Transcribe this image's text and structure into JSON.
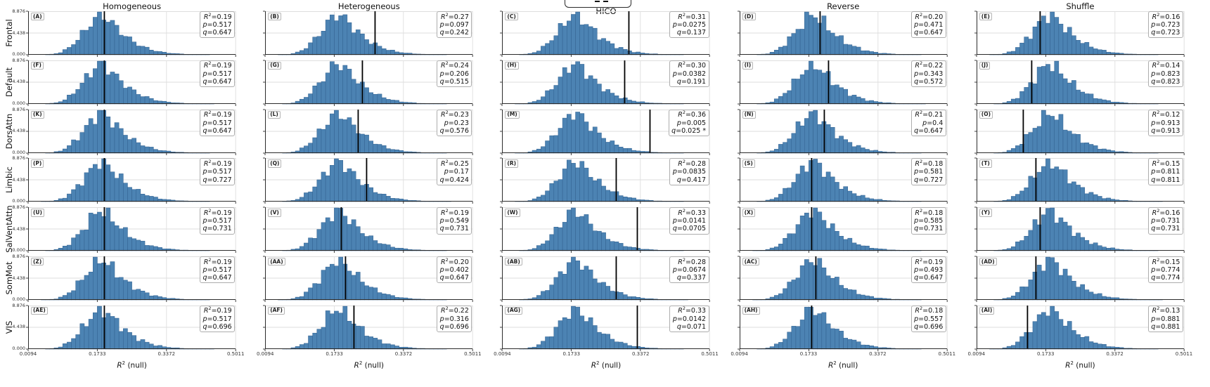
{
  "columns": [
    "Homogeneous",
    "Heterogeneous",
    "HICO",
    "Reverse",
    "Shuffle"
  ],
  "rows": [
    "Frontal",
    "Default",
    "DorsAttn",
    "Limbic",
    "SalVentAttn",
    "SomMot",
    "VIS"
  ],
  "axis": {
    "x_ticks": [
      "0.0094",
      "0.1733",
      "0.3372",
      "0.5011"
    ],
    "y_ticks": [
      "0.000",
      "4.438",
      "8.876"
    ],
    "xlabel_base": "R",
    "xlabel_sup": "2",
    "xlabel_rest": " (null)"
  },
  "stats_labels": {
    "r2_base": "R",
    "r2_sup": "2",
    "p": "p",
    "q": "q"
  },
  "legend": {
    "sample": "dashed-line",
    "cut_off": true
  },
  "colors": {
    "bar_fill": "#4c83b3",
    "bar_edge": "#31608f",
    "observed_line": "#000000",
    "grid": "#dedede",
    "spine": "#2b2b2b",
    "box_border": "#adadad"
  },
  "chart_data": {
    "type": "bar",
    "subtype": "null-distribution-histogram-grid",
    "xlim": [
      0.0094,
      0.5011
    ],
    "ylim": [
      0,
      8.876
    ],
    "x_ticks": [
      0.0094,
      0.1733,
      0.3372,
      0.5011
    ],
    "y_ticks": [
      0.0,
      4.438,
      8.876
    ],
    "grid": true,
    "null_hist_bins": 48,
    "null_hist_heights": [
      0,
      0,
      0,
      0.02,
      0.06,
      0.12,
      0.25,
      0.5,
      0.9,
      1.5,
      2.3,
      3.2,
      4.2,
      5.3,
      6.4,
      7.5,
      8.3,
      8.0,
      7.3,
      6.4,
      5.5,
      4.7,
      3.9,
      3.2,
      2.6,
      2.1,
      1.7,
      1.35,
      1.05,
      0.8,
      0.62,
      0.48,
      0.37,
      0.28,
      0.21,
      0.16,
      0.12,
      0.09,
      0.07,
      0.05,
      0.04,
      0.03,
      0.02,
      0.015,
      0.01,
      0,
      0,
      0
    ],
    "panels": [
      {
        "letter": "(A)",
        "row": "Frontal",
        "col": "Homogeneous",
        "r2": "0.19",
        "p": "0.517",
        "q": "0.647"
      },
      {
        "letter": "(B)",
        "row": "Frontal",
        "col": "Heterogeneous",
        "r2": "0.27",
        "p": "0.097",
        "q": "0.242"
      },
      {
        "letter": "(C)",
        "row": "Frontal",
        "col": "HICO",
        "r2": "0.31",
        "p": "0.0275",
        "q": "0.137"
      },
      {
        "letter": "(D)",
        "row": "Frontal",
        "col": "Reverse",
        "r2": "0.20",
        "p": "0.471",
        "q": "0.647"
      },
      {
        "letter": "(E)",
        "row": "Frontal",
        "col": "Shuffle",
        "r2": "0.16",
        "p": "0.723",
        "q": "0.723"
      },
      {
        "letter": "(F)",
        "row": "Default",
        "col": "Homogeneous",
        "r2": "0.19",
        "p": "0.517",
        "q": "0.647"
      },
      {
        "letter": "(G)",
        "row": "Default",
        "col": "Heterogeneous",
        "r2": "0.24",
        "p": "0.206",
        "q": "0.515"
      },
      {
        "letter": "(H)",
        "row": "Default",
        "col": "HICO",
        "r2": "0.30",
        "p": "0.0382",
        "q": "0.191"
      },
      {
        "letter": "(I)",
        "row": "Default",
        "col": "Reverse",
        "r2": "0.22",
        "p": "0.343",
        "q": "0.572"
      },
      {
        "letter": "(J)",
        "row": "Default",
        "col": "Shuffle",
        "r2": "0.14",
        "p": "0.823",
        "q": "0.823"
      },
      {
        "letter": "(K)",
        "row": "DorsAttn",
        "col": "Homogeneous",
        "r2": "0.19",
        "p": "0.517",
        "q": "0.647"
      },
      {
        "letter": "(L)",
        "row": "DorsAttn",
        "col": "Heterogeneous",
        "r2": "0.23",
        "p": "0.23",
        "q": "0.576"
      },
      {
        "letter": "(M)",
        "row": "DorsAttn",
        "col": "HICO",
        "r2": "0.36",
        "p": "0.005",
        "q": "0.025 *"
      },
      {
        "letter": "(N)",
        "row": "DorsAttn",
        "col": "Reverse",
        "r2": "0.21",
        "p": "0.4",
        "q": "0.647"
      },
      {
        "letter": "(O)",
        "row": "DorsAttn",
        "col": "Shuffle",
        "r2": "0.12",
        "p": "0.913",
        "q": "0.913"
      },
      {
        "letter": "(P)",
        "row": "Limbic",
        "col": "Homogeneous",
        "r2": "0.19",
        "p": "0.517",
        "q": "0.727"
      },
      {
        "letter": "(Q)",
        "row": "Limbic",
        "col": "Heterogeneous",
        "r2": "0.25",
        "p": "0.17",
        "q": "0.424"
      },
      {
        "letter": "(R)",
        "row": "Limbic",
        "col": "HICO",
        "r2": "0.28",
        "p": "0.0835",
        "q": "0.417"
      },
      {
        "letter": "(S)",
        "row": "Limbic",
        "col": "Reverse",
        "r2": "0.18",
        "p": "0.581",
        "q": "0.727"
      },
      {
        "letter": "(T)",
        "row": "Limbic",
        "col": "Shuffle",
        "r2": "0.15",
        "p": "0.811",
        "q": "0.811"
      },
      {
        "letter": "(U)",
        "row": "SalVentAttn",
        "col": "Homogeneous",
        "r2": "0.19",
        "p": "0.517",
        "q": "0.731"
      },
      {
        "letter": "(V)",
        "row": "SalVentAttn",
        "col": "Heterogeneous",
        "r2": "0.19",
        "p": "0.549",
        "q": "0.731"
      },
      {
        "letter": "(W)",
        "row": "SalVentAttn",
        "col": "HICO",
        "r2": "0.33",
        "p": "0.0141",
        "q": "0.0705"
      },
      {
        "letter": "(X)",
        "row": "SalVentAttn",
        "col": "Reverse",
        "r2": "0.18",
        "p": "0.585",
        "q": "0.731"
      },
      {
        "letter": "(Y)",
        "row": "SalVentAttn",
        "col": "Shuffle",
        "r2": "0.16",
        "p": "0.731",
        "q": "0.731"
      },
      {
        "letter": "(Z)",
        "row": "SomMot",
        "col": "Homogeneous",
        "r2": "0.19",
        "p": "0.517",
        "q": "0.647"
      },
      {
        "letter": "(AA)",
        "row": "SomMot",
        "col": "Heterogeneous",
        "r2": "0.20",
        "p": "0.402",
        "q": "0.647"
      },
      {
        "letter": "(AB)",
        "row": "SomMot",
        "col": "HICO",
        "r2": "0.28",
        "p": "0.0674",
        "q": "0.337"
      },
      {
        "letter": "(AC)",
        "row": "SomMot",
        "col": "Reverse",
        "r2": "0.19",
        "p": "0.493",
        "q": "0.647"
      },
      {
        "letter": "(AD)",
        "row": "SomMot",
        "col": "Shuffle",
        "r2": "0.15",
        "p": "0.774",
        "q": "0.774"
      },
      {
        "letter": "(AE)",
        "row": "VIS",
        "col": "Homogeneous",
        "r2": "0.19",
        "p": "0.517",
        "q": "0.696"
      },
      {
        "letter": "(AF)",
        "row": "VIS",
        "col": "Heterogeneous",
        "r2": "0.22",
        "p": "0.316",
        "q": "0.696"
      },
      {
        "letter": "(AG)",
        "row": "VIS",
        "col": "HICO",
        "r2": "0.33",
        "p": "0.0142",
        "q": "0.071"
      },
      {
        "letter": "(AH)",
        "row": "VIS",
        "col": "Reverse",
        "r2": "0.18",
        "p": "0.557",
        "q": "0.696"
      },
      {
        "letter": "(AI)",
        "row": "VIS",
        "col": "Shuffle",
        "r2": "0.13",
        "p": "0.881",
        "q": "0.881"
      }
    ]
  }
}
